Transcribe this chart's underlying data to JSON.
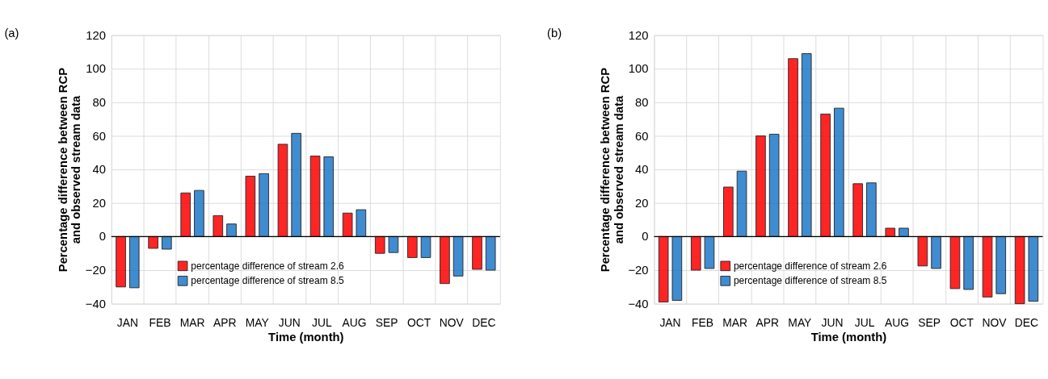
{
  "chart_data": [
    {
      "type": "bar",
      "annotations": [
        "(a)"
      ],
      "xlabel": "Time (month)",
      "ylabel": "Percentage difference between RCP\nand observed stream data",
      "categories": [
        "JAN",
        "FEB",
        "MAR",
        "APR",
        "MAY",
        "JUN",
        "JUL",
        "AUG",
        "SEP",
        "OCT",
        "NOV",
        "DEC"
      ],
      "series": [
        {
          "name": "percentage difference of stream 2.6",
          "color": "#ff0000",
          "values": [
            -30,
            -7,
            26,
            12.5,
            36,
            55,
            48,
            14,
            -10,
            -12.5,
            -28,
            -19.5
          ]
        },
        {
          "name": "percentage difference of stream 8.5",
          "color": "#1f78c8",
          "values": [
            -30.5,
            -7.5,
            27.5,
            7.5,
            37.5,
            61.5,
            47.5,
            16,
            -9.5,
            -12.5,
            -23.5,
            -20
          ]
        }
      ],
      "ylim": [
        -40,
        120
      ],
      "yticks": [
        -40,
        -20,
        0,
        20,
        40,
        60,
        80,
        100,
        120
      ],
      "grid": true,
      "legend": "bottom"
    },
    {
      "type": "bar",
      "annotations": [
        "(b)"
      ],
      "xlabel": "Time (month)",
      "ylabel": "Percentage difference between RCP\nand observed stream data",
      "categories": [
        "JAN",
        "FEB",
        "MAR",
        "APR",
        "MAY",
        "JUN",
        "JUL",
        "AUG",
        "SEP",
        "OCT",
        "NOV",
        "DEC"
      ],
      "series": [
        {
          "name": "percentage difference of stream 2.6",
          "color": "#ff0000",
          "values": [
            -39,
            -20,
            29.5,
            60,
            106,
            73,
            31.5,
            5,
            -17.5,
            -31,
            -36,
            -40
          ]
        },
        {
          "name": "percentage difference of stream 8.5",
          "color": "#1f78c8",
          "values": [
            -38,
            -19,
            39,
            61,
            109,
            76.5,
            32,
            5,
            -19,
            -31.5,
            -34,
            -38.5
          ]
        }
      ],
      "ylim": [
        -40,
        120
      ],
      "yticks": [
        -40,
        -20,
        0,
        20,
        40,
        60,
        80,
        100,
        120
      ],
      "grid": true,
      "legend": "bottom"
    }
  ]
}
